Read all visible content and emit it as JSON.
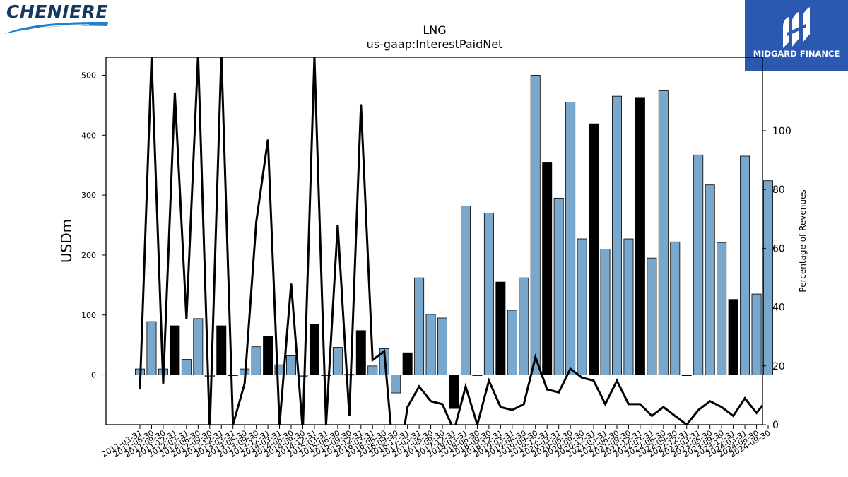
{
  "logos": {
    "left_text": "CHENIERE",
    "right_text": "MIDGARD FINANCE"
  },
  "colors": {
    "bar_light": "#7aa7cc",
    "bar_dark": "#000000",
    "line": "#000000",
    "logo_right_bg": "#2b59b0",
    "logo_left_text": "#16385f",
    "logo_left_swoosh": "#1f7fd0"
  },
  "chart_data": {
    "type": "bar",
    "title": "LNG",
    "subtitle": "us-gaap:InterestPaidNet",
    "ylabel": "USDm",
    "y2label": "Percentage of Revenues",
    "ylim": [
      -83,
      530
    ],
    "y2lim": [
      0,
      125
    ],
    "yticks": [
      0,
      100,
      200,
      300,
      400,
      500
    ],
    "y2ticks": [
      0,
      20,
      40,
      60,
      80,
      100
    ],
    "grid": false,
    "categories": [
      "2011-03-31",
      "2011-06-30",
      "2011-09-30",
      "2011-12-31",
      "2012-03-31",
      "2012-06-30",
      "2012-09-30",
      "2012-12-31",
      "2013-03-31",
      "2013-06-30",
      "2013-09-30",
      "2013-12-31",
      "2014-03-31",
      "2014-06-30",
      "2014-09-30",
      "2014-12-31",
      "2015-03-31",
      "2015-06-30",
      "2015-09-30",
      "2015-12-31",
      "2016-03-31",
      "2016-06-30",
      "2016-09-30",
      "2016-12-31",
      "2017-03-31",
      "2017-06-30",
      "2017-09-30",
      "2017-12-31",
      "2018-03-31",
      "2018-06-30",
      "2018-09-30",
      "2018-12-31",
      "2019-03-31",
      "2019-06-30",
      "2019-09-30",
      "2019-12-31",
      "2020-03-31",
      "2020-06-30",
      "2020-09-30",
      "2020-12-31",
      "2021-03-31",
      "2021-06-30",
      "2021-09-30",
      "2021-12-31",
      "2022-03-31",
      "2022-06-30",
      "2022-09-30",
      "2022-12-31",
      "2023-03-31",
      "2023-06-30",
      "2023-09-30",
      "2023-12-31",
      "2024-03-31",
      "2024-06-30",
      "2024-09-30"
    ],
    "tick_labels": [
      "2011-03-31",
      "2011-06-30",
      "2011-09-30",
      "2011-12-31",
      "2012-03-31",
      "2012-06-30",
      "2012-09-30",
      "2012-12-31",
      "2013-03-31",
      "2013-06-30",
      "2013-09-30",
      "2013-12-31",
      "2014-03-31",
      "2014-06-30",
      "2014-09-30",
      "2014-12-31",
      "2015-03-31",
      "2015-06-30",
      "2015-09-30",
      "2015-12-31",
      "2016-03-31",
      "2016-06-30",
      "2016-09-30",
      "2016-12-31",
      "2017-03-31",
      "2017-06-30",
      "2017-09-30",
      "2017-12-31",
      "2018-03-31",
      "2018-06-30",
      "2018-09-30",
      "2018-12-31",
      "2019-03-31",
      "2019-06-30",
      "2019-09-30",
      "2019-12-31",
      "2020-03-31",
      "2020-06-30",
      "2020-09-30",
      "2020-12-31",
      "2021-03-31",
      "2021-06-30",
      "2021-09-30",
      "2021-12-31",
      "2022-03-31",
      "2022-06-30",
      "2022-09-30",
      "2022-12-31",
      "2023-03-31",
      "2023-06-30",
      "2023-09-30",
      "2023-12-31",
      "2024-03-31",
      "2024-06-30",
      "2024-09-30"
    ],
    "series": [
      {
        "type": "bar",
        "axis": "left",
        "values": [
          10,
          89,
          10,
          82,
          26,
          94,
          -3,
          82,
          0,
          10,
          47,
          65,
          17,
          32,
          -2,
          84,
          0,
          46,
          1,
          74,
          15,
          44,
          -30,
          37,
          162,
          101,
          95,
          -56,
          282,
          0,
          270,
          155,
          108,
          162,
          500,
          355,
          295,
          455,
          227,
          419,
          210,
          465,
          227,
          463,
          195,
          474,
          222,
          0,
          367,
          317,
          221,
          126,
          365,
          135,
          324
        ],
        "dark": [
          false,
          false,
          false,
          true,
          false,
          false,
          false,
          true,
          false,
          false,
          false,
          true,
          false,
          false,
          false,
          true,
          false,
          false,
          false,
          true,
          false,
          false,
          false,
          true,
          false,
          false,
          false,
          true,
          false,
          false,
          false,
          true,
          false,
          false,
          false,
          true,
          false,
          false,
          false,
          true,
          false,
          false,
          false,
          true,
          false,
          false,
          false,
          true,
          false,
          false,
          false,
          true,
          false,
          false,
          false
        ]
      },
      {
        "type": "line",
        "axis": "right",
        "values": [
          12,
          125,
          14,
          113,
          36,
          126,
          -2,
          126,
          0,
          14,
          69,
          97,
          0,
          48,
          -2,
          125,
          0,
          68,
          3,
          109,
          22,
          25,
          -20,
          6,
          13,
          8,
          7,
          -2,
          13,
          0,
          15,
          6,
          5,
          7,
          23,
          12,
          11,
          19,
          16,
          15,
          7,
          15,
          7,
          7,
          3,
          6,
          3,
          0,
          5,
          8,
          6,
          3,
          9,
          4,
          9
        ]
      }
    ]
  }
}
